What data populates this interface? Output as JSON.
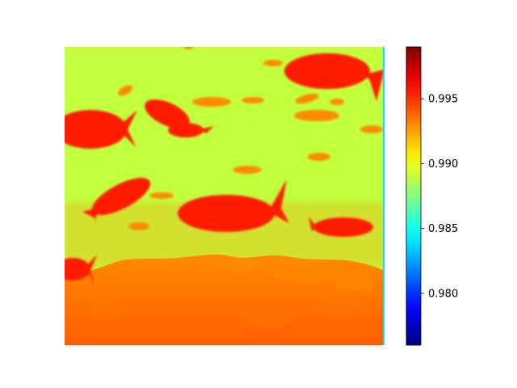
{
  "chart_data": {
    "type": "heatmap",
    "title": "",
    "xlabel": "",
    "ylabel": "",
    "axes_visible": false,
    "colormap": "jet",
    "colorbar": {
      "vmin": 0.976,
      "vmax": 0.999,
      "ticks": [
        0.98,
        0.985,
        0.99,
        0.995
      ],
      "tick_labels": [
        "0.980",
        "0.985",
        "0.990",
        "0.995"
      ],
      "placement": "right"
    },
    "values": {
      "background_water": 0.989,
      "fish": 0.9955,
      "small_fish": 0.993,
      "seabed": 0.994,
      "seabed_texture": 0.9935,
      "right_edge_strip": 0.984
    }
  }
}
